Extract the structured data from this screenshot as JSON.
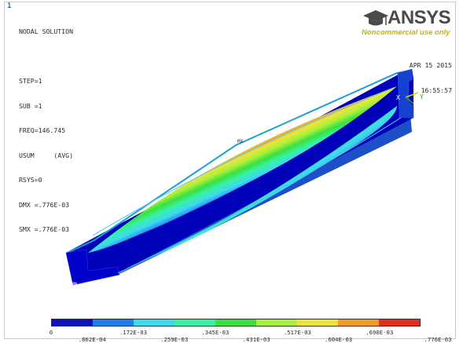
{
  "window": {
    "number": "1"
  },
  "info_lines": [
    "NODAL SOLUTION",
    "",
    "STEP=1",
    "SUB =1",
    "FREQ=146.745",
    "USUM     (AVG)",
    "RSYS=0",
    "DMX =.776E-03",
    "SMX =.776E-03"
  ],
  "logo": {
    "text": "ANSYS",
    "subtitle": "Noncommercial use only"
  },
  "datetime": {
    "date": "APR 15 2015",
    "time": "16:55:57"
  },
  "triad": {
    "x_label": "X",
    "y_label": "Y"
  },
  "markers": {
    "mx": "MX",
    "mn": "MN"
  },
  "colors": {
    "bands": [
      "#0d10c4",
      "#1f7ef2",
      "#3ed9ee",
      "#37f2a5",
      "#3ae040",
      "#a8f03b",
      "#ece43b",
      "#f59a2a",
      "#e62c1c"
    ],
    "flange": "#17a2cf",
    "web_dark": "#0000b8"
  },
  "legend": {
    "top": [
      "0",
      ".172E-03",
      ".345E-03",
      ".517E-03",
      ".690E-03"
    ],
    "bottom": [
      ".862E-04",
      ".259E-03",
      ".431E-03",
      ".604E-03",
      ".776E-03"
    ]
  }
}
